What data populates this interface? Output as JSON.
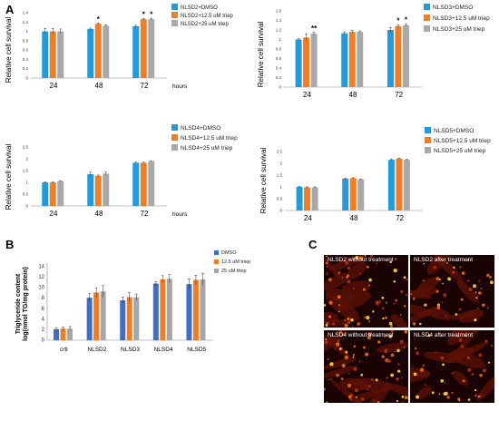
{
  "panels": {
    "a": "A",
    "b": "B",
    "c": "C"
  },
  "colors": {
    "dmso": "#1f9bde",
    "low": "#f57c1f",
    "high": "#a9a9a9",
    "dmso_b": "#3d6fc6",
    "low_b": "#f47b20",
    "high_b": "#a6a6a6"
  },
  "chart_data": [
    {
      "type": "bar",
      "panel": "A",
      "categories": [
        "24",
        "48",
        "72"
      ],
      "xunit": "hours",
      "ylabel": "Relative cell survival",
      "ylim": [
        0,
        1.4
      ],
      "yticks": [
        "0",
        "0.2",
        "0.4",
        "0.6",
        "0.8",
        "1",
        "1.2",
        "1.4"
      ],
      "series": [
        {
          "name": "NLSD2+DMSO",
          "values": [
            1.0,
            1.05,
            1.11
          ],
          "errors": [
            0.06,
            0.02,
            0.02
          ]
        },
        {
          "name": "NLSD2+12.5 uM triep",
          "values": [
            1.0,
            1.16,
            1.26
          ],
          "errors": [
            0.06,
            0.02,
            0.02
          ]
        },
        {
          "name": "NLSD2+25 uM triep",
          "values": [
            1.0,
            1.12,
            1.26
          ],
          "errors": [
            0.05,
            0.02,
            0.02
          ]
        }
      ],
      "annotations": [
        {
          "category": "48",
          "series": 1,
          "text": "*"
        },
        {
          "category": "72",
          "series": 1,
          "text": "*"
        },
        {
          "category": "72",
          "series": 2,
          "text": "*"
        }
      ]
    },
    {
      "type": "bar",
      "panel": "A",
      "categories": [
        "24",
        "48",
        "72"
      ],
      "xunit": "",
      "ylabel": "Relative cell survival",
      "ylim": [
        0,
        1.6
      ],
      "yticks": [
        "0",
        "0.2",
        "0.4",
        "0.6",
        "0.8",
        "1",
        "1.2",
        "1.4",
        "1.6"
      ],
      "series": [
        {
          "name": "NLSD3+DMSO",
          "values": [
            1.0,
            1.13,
            1.2
          ],
          "errors": [
            0.02,
            0.03,
            0.05
          ]
        },
        {
          "name": "NLSD3+12.5 uM triep",
          "values": [
            1.04,
            1.16,
            1.28
          ],
          "errors": [
            0.08,
            0.03,
            0.03
          ]
        },
        {
          "name": "NLSD3+25 uM triep",
          "values": [
            1.12,
            1.16,
            1.3
          ],
          "errors": [
            0.03,
            0.02,
            0.03
          ]
        }
      ],
      "annotations": [
        {
          "category": "24",
          "series": 2,
          "text": "**"
        },
        {
          "category": "72",
          "series": 1,
          "text": "*"
        },
        {
          "category": "72",
          "series": 2,
          "text": "*"
        }
      ]
    },
    {
      "type": "bar",
      "panel": "A",
      "categories": [
        "24",
        "48",
        "72"
      ],
      "xunit": "hours",
      "ylabel": "Relative cell survival",
      "ylim": [
        0,
        2.5
      ],
      "yticks": [
        "0",
        "0.5",
        "1",
        "1.5",
        "2",
        "2.5"
      ],
      "series": [
        {
          "name": "NLSD4+DMSO",
          "values": [
            1.0,
            1.35,
            1.83
          ],
          "errors": [
            0.02,
            0.08,
            0.03
          ]
        },
        {
          "name": "NLSD4+12.5 uM triep",
          "values": [
            1.0,
            1.28,
            1.83
          ],
          "errors": [
            0.02,
            0.03,
            0.03
          ]
        },
        {
          "name": "NLSD4+25 uM triep",
          "values": [
            1.05,
            1.37,
            1.9
          ],
          "errors": [
            0.02,
            0.06,
            0.02
          ]
        }
      ],
      "annotations": []
    },
    {
      "type": "bar",
      "panel": "A",
      "categories": [
        "24",
        "48",
        "72"
      ],
      "xunit": "hours",
      "ylabel": "Relative cell survival",
      "ylim": [
        0,
        2.5
      ],
      "yticks": [
        "0",
        "0.5",
        "1",
        "1.5",
        "2",
        "2.5"
      ],
      "series": [
        {
          "name": "NLSD5+DMSO",
          "values": [
            1.0,
            1.35,
            2.15
          ],
          "errors": [
            0.02,
            0.02,
            0.04
          ]
        },
        {
          "name": "NLSD5+12.5 uM triep",
          "values": [
            0.98,
            1.37,
            2.2
          ],
          "errors": [
            0.02,
            0.02,
            0.02
          ]
        },
        {
          "name": "NLSD5+25 uM triep",
          "values": [
            0.98,
            1.32,
            2.15
          ],
          "errors": [
            0.02,
            0.02,
            0.02
          ]
        }
      ],
      "annotations": []
    },
    {
      "type": "bar",
      "panel": "B",
      "categories": [
        "crtl",
        "NLSD2",
        "NLSD3",
        "NLSD4",
        "NLSD5"
      ],
      "xunit": "",
      "ylabel": "Triglyceride content",
      "ylabel2": "log(nmol TG/mg protein)",
      "ylim": [
        0,
        14
      ],
      "yticks": [
        "0",
        "2",
        "4",
        "6",
        "8",
        "10",
        "12",
        "14"
      ],
      "series": [
        {
          "name": "DMSO",
          "values": [
            2.1,
            8.1,
            7.6,
            10.8,
            10.7
          ],
          "errors": [
            0.3,
            0.8,
            0.6,
            0.4,
            1.0
          ]
        },
        {
          "name": "12.5 uM triep",
          "values": [
            2.2,
            9.1,
            8.2,
            11.6,
            11.5
          ],
          "errors": [
            0.3,
            0.9,
            0.9,
            0.7,
            0.9
          ]
        },
        {
          "name": "25 uM triep",
          "values": [
            2.2,
            9.3,
            8.2,
            11.7,
            11.6
          ],
          "errors": [
            0.4,
            1.1,
            0.6,
            0.8,
            1.1
          ]
        }
      ],
      "annotations": []
    }
  ],
  "micrographs": [
    {
      "label": "NLSD2 without treatment"
    },
    {
      "label": "NLSD2 after treatment"
    },
    {
      "label": "NLSD4 without treatment"
    },
    {
      "label": "NLSD4 after treatment"
    }
  ]
}
